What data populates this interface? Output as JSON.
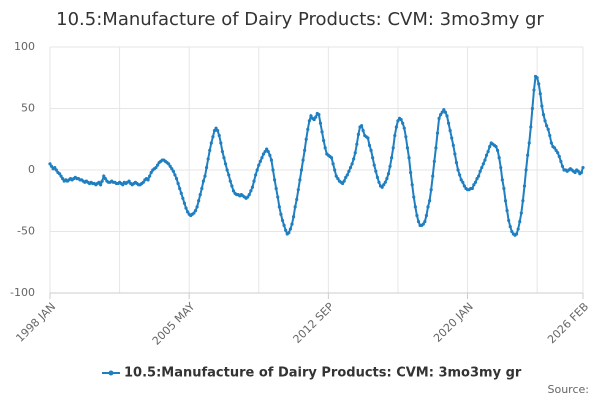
{
  "chart_data": {
    "type": "line",
    "title": "10.5:Manufacture of Dairy Products: CVM: 3mo3my gr",
    "source": "Source:",
    "categories": [
      "1998 JAN",
      null,
      null,
      null,
      null,
      null,
      null,
      null,
      null,
      null,
      null,
      null,
      null,
      null,
      null,
      null,
      null,
      null,
      null,
      null,
      null,
      null,
      null,
      null,
      null,
      null,
      null,
      null,
      null,
      null,
      null,
      null,
      null,
      null,
      null,
      null,
      null,
      null,
      null,
      null,
      null,
      null,
      null,
      null,
      null,
      null,
      null,
      null,
      null,
      null,
      null,
      null,
      null,
      null,
      null,
      null,
      null,
      null,
      null,
      null,
      null,
      null,
      null,
      null,
      null,
      null,
      null,
      null,
      null,
      null,
      null,
      null,
      null,
      null,
      null,
      null,
      null,
      null,
      null,
      null,
      null,
      null,
      null,
      null,
      null,
      null,
      null,
      null,
      "2005 MAY",
      null,
      null,
      null,
      null,
      null,
      null,
      null,
      null,
      null,
      null,
      null,
      null,
      null,
      null,
      null,
      null,
      null,
      null,
      null,
      null,
      null,
      null,
      null,
      null,
      null,
      null,
      null,
      null,
      null,
      null,
      null,
      null,
      null,
      null,
      null,
      null,
      null,
      null,
      null,
      null,
      null,
      null,
      null,
      null,
      null,
      null,
      null,
      null,
      null,
      null,
      null,
      null,
      null,
      null,
      null,
      null,
      null,
      null,
      null,
      null,
      null,
      null,
      null,
      null,
      null,
      null,
      null,
      null,
      null,
      null,
      null,
      null,
      null,
      null,
      null,
      null,
      null,
      null,
      null,
      null,
      null,
      null,
      null,
      null,
      null,
      null,
      null,
      "2012 SEP",
      null,
      null,
      null,
      null,
      null,
      null,
      null,
      null,
      null,
      null,
      null,
      null,
      null,
      null,
      null,
      null,
      null,
      null,
      null,
      null,
      null,
      null,
      null,
      null,
      null,
      null,
      null,
      null,
      null,
      null,
      null,
      null,
      null,
      null,
      null,
      null,
      null,
      null,
      null,
      null,
      null,
      null,
      null,
      null,
      null,
      null,
      null,
      null,
      null,
      null,
      null,
      null,
      null,
      null,
      null,
      null,
      null,
      null,
      null,
      null,
      null,
      null,
      null,
      null,
      null,
      null,
      null,
      null,
      null,
      null,
      null,
      null,
      null,
      null,
      null,
      null,
      null,
      null,
      null,
      null,
      null,
      null,
      null,
      null,
      null,
      null,
      null,
      "2020 JAN",
      null,
      null,
      null,
      null,
      null,
      null,
      null,
      null,
      null,
      null,
      null,
      null,
      null,
      null,
      null,
      null,
      null,
      null,
      null,
      null,
      null,
      null,
      null,
      null,
      null,
      null,
      null,
      null,
      null,
      null,
      null,
      null,
      null,
      null,
      null,
      null,
      null,
      null,
      null,
      null,
      null,
      null,
      null,
      null,
      null,
      null,
      null,
      null,
      null,
      null,
      null,
      null,
      null,
      null,
      null,
      null,
      null,
      null,
      null,
      null,
      null,
      null,
      null,
      null,
      null,
      null,
      null,
      null,
      null,
      null,
      null,
      null,
      "2026 FEB"
    ],
    "series": [
      {
        "name": "10.5:Manufacture of Dairy Products: CVM: 3mo3my gr",
        "color": "#1f7fc0",
        "values": [
          5,
          3,
          1,
          2,
          0,
          -2,
          -3,
          -5,
          -7,
          -9,
          -8,
          -9,
          -8,
          -7,
          -8,
          -7,
          -6,
          -7,
          -7,
          -8,
          -8,
          -9,
          -10,
          -9,
          -10,
          -11,
          -10,
          -11,
          -11,
          -12,
          -11,
          -10,
          -12,
          -9,
          -5,
          -7,
          -9,
          -10,
          -10,
          -9,
          -10,
          -10,
          -11,
          -11,
          -10,
          -11,
          -12,
          -10,
          -11,
          -10,
          -9,
          -11,
          -12,
          -11,
          -10,
          -11,
          -12,
          -12,
          -11,
          -10,
          -8,
          -7,
          -8,
          -5,
          -2,
          0,
          1,
          2,
          4,
          6,
          7,
          8,
          8,
          7,
          6,
          5,
          3,
          1,
          -1,
          -4,
          -7,
          -11,
          -15,
          -19,
          -23,
          -27,
          -31,
          -34,
          -36,
          -37,
          -36,
          -35,
          -33,
          -30,
          -25,
          -20,
          -15,
          -9,
          -5,
          2,
          9,
          16,
          22,
          27,
          32,
          34,
          32,
          28,
          22,
          15,
          10,
          5,
          0,
          -4,
          -9,
          -13,
          -17,
          -19,
          -20,
          -20,
          -21,
          -20,
          -21,
          -22,
          -23,
          -22,
          -20,
          -17,
          -14,
          -9,
          -4,
          0,
          4,
          7,
          10,
          13,
          15,
          17,
          15,
          12,
          8,
          0,
          -8,
          -15,
          -22,
          -30,
          -36,
          -41,
          -45,
          -49,
          -52,
          -51,
          -48,
          -44,
          -38,
          -30,
          -24,
          -16,
          -8,
          0,
          8,
          16,
          25,
          33,
          40,
          44,
          42,
          41,
          43,
          46,
          45,
          38,
          31,
          24,
          18,
          13,
          12,
          11,
          10,
          5,
          0,
          -5,
          -7,
          -9,
          -10,
          -11,
          -9,
          -6,
          -4,
          -1,
          2,
          5,
          9,
          14,
          21,
          29,
          35,
          36,
          32,
          28,
          27,
          26,
          20,
          16,
          10,
          4,
          -1,
          -6,
          -10,
          -13,
          -14,
          -12,
          -10,
          -7,
          -3,
          3,
          10,
          18,
          28,
          35,
          40,
          42,
          41,
          38,
          34,
          27,
          18,
          10,
          -2,
          -12,
          -22,
          -30,
          -37,
          -42,
          -45,
          -45,
          -44,
          -42,
          -37,
          -30,
          -25,
          -16,
          -5,
          7,
          18,
          30,
          42,
          45,
          47,
          49,
          47,
          44,
          38,
          32,
          26,
          20,
          13,
          6,
          0,
          -4,
          -8,
          -10,
          -13,
          -15,
          -16,
          -16,
          -15,
          -15,
          -12,
          -10,
          -7,
          -5,
          -1,
          2,
          5,
          8,
          12,
          15,
          19,
          22,
          21,
          20,
          19,
          16,
          10,
          2,
          -8,
          -15,
          -25,
          -33,
          -41,
          -46,
          -50,
          -52,
          -53,
          -52,
          -48,
          -42,
          -35,
          -25,
          -13,
          0,
          12,
          22,
          35,
          50,
          65,
          76,
          75,
          70,
          62,
          52,
          45,
          40,
          36,
          33,
          28,
          22,
          19,
          18,
          16,
          14,
          11,
          7,
          3,
          0,
          0,
          -1,
          0,
          1,
          0,
          -1,
          -2,
          0,
          -1,
          -3,
          -2,
          2
        ]
      }
    ],
    "ylim": [
      -100,
      100
    ],
    "yticks": [
      -100,
      -50,
      0,
      50,
      100
    ],
    "grid": true
  }
}
